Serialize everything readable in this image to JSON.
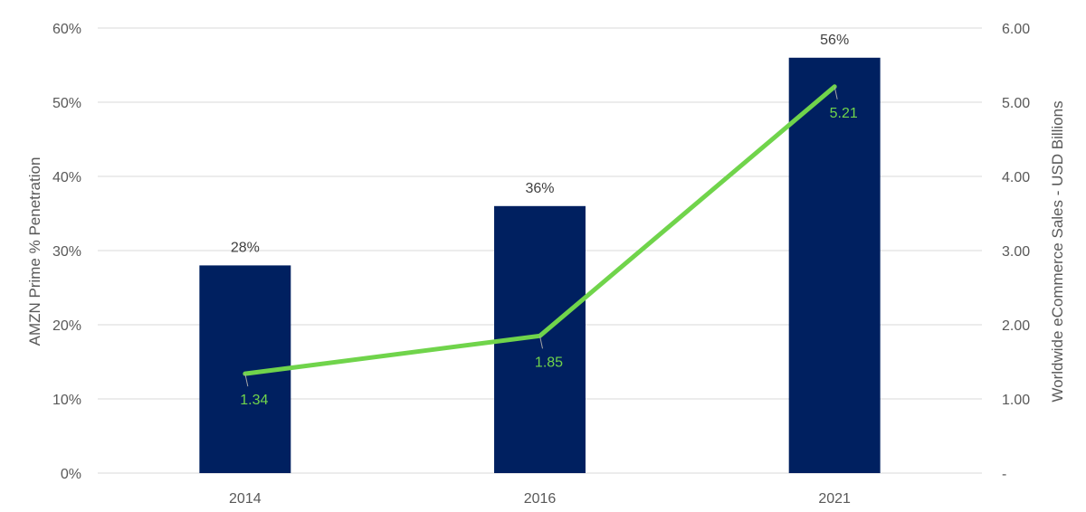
{
  "chart_data": {
    "type": "bar",
    "categories": [
      "2014",
      "2016",
      "2021"
    ],
    "series": [
      {
        "values": [
          28,
          36,
          56
        ],
        "data_labels": [
          "28%",
          "36%",
          "56%"
        ],
        "axis": "left",
        "color": "#002060"
      },
      {
        "values": [
          1.34,
          1.85,
          5.21
        ],
        "data_labels": [
          "1.34",
          "1.85",
          "5.21"
        ],
        "axis": "right",
        "render": "line",
        "color": "#70D44B"
      }
    ],
    "ylabel": "AMZN Prime % Penetration",
    "ylabel_right": "Worldwide eCommerce Sales - USD Billions",
    "ylim": [
      0,
      60
    ],
    "ylim_right": [
      0,
      6
    ],
    "yticks": [
      "0%",
      "10%",
      "20%",
      "30%",
      "40%",
      "50%",
      "60%"
    ],
    "yticks_right": [
      "-",
      "1.00",
      "2.00",
      "3.00",
      "4.00",
      "5.00",
      "6.00"
    ],
    "grid": true,
    "gridline_color": "#D9D9D9"
  }
}
